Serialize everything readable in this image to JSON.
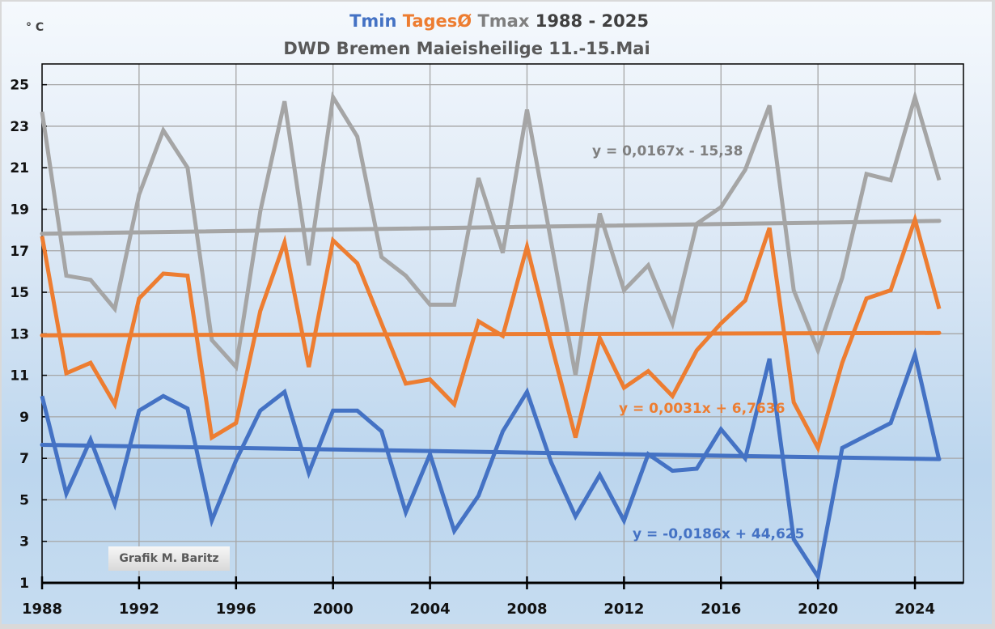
{
  "chart_data": {
    "type": "line",
    "title_parts": [
      {
        "text": "Tmin",
        "color": "#4472c4"
      },
      {
        "text": " TagesØ",
        "color": "#ed7d31"
      },
      {
        "text": " Tmax",
        "color": "#7f7f7f"
      },
      {
        "text": " 1988 - 2025",
        "color": "#404040"
      }
    ],
    "subtitle": "DWD Bremen Maieisheilige 11.-15.Mai",
    "ylabel": "° C",
    "xlabel": "",
    "x": [
      1988,
      1989,
      1990,
      1991,
      1992,
      1993,
      1994,
      1995,
      1996,
      1997,
      1998,
      1999,
      2000,
      2001,
      2002,
      2003,
      2004,
      2005,
      2006,
      2007,
      2008,
      2009,
      2010,
      2011,
      2012,
      2013,
      2014,
      2015,
      2016,
      2017,
      2018,
      2019,
      2020,
      2021,
      2022,
      2023,
      2024,
      2025
    ],
    "xlim": [
      1988,
      2026
    ],
    "ylim": [
      1,
      26
    ],
    "x_ticks": [
      1988,
      1992,
      1996,
      2000,
      2004,
      2008,
      2012,
      2016,
      2020,
      2024
    ],
    "y_ticks": [
      1,
      3,
      5,
      7,
      9,
      11,
      13,
      15,
      17,
      19,
      21,
      23,
      25
    ],
    "grid": true,
    "series": [
      {
        "name": "Tmax",
        "color": "#a5a5a5",
        "values": [
          23.7,
          15.8,
          15.6,
          14.2,
          19.7,
          22.8,
          21.0,
          12.7,
          11.4,
          18.9,
          24.2,
          16.3,
          24.4,
          22.5,
          16.7,
          15.8,
          14.4,
          14.4,
          20.5,
          16.9,
          23.8,
          17.4,
          11.0,
          18.8,
          15.1,
          16.3,
          13.5,
          18.3,
          19.1,
          20.9,
          24.0,
          15.1,
          12.2,
          15.7,
          20.7,
          20.4,
          24.4,
          20.4
        ],
        "trend": {
          "slope": 0.0167,
          "intercept": -15.38,
          "label": "y = 0,0167x - 15,38",
          "label_color": "#7f7f7f"
        }
      },
      {
        "name": "TagesØ",
        "color": "#ed7d31",
        "values": [
          17.7,
          11.1,
          11.6,
          9.6,
          14.7,
          15.9,
          15.8,
          8.0,
          8.7,
          14.1,
          17.4,
          11.4,
          17.5,
          16.4,
          13.5,
          10.6,
          10.8,
          9.6,
          13.6,
          12.9,
          17.2,
          12.5,
          8.0,
          12.8,
          10.4,
          11.2,
          10.0,
          12.2,
          13.5,
          14.6,
          18.1,
          9.7,
          7.5,
          11.6,
          14.7,
          15.1,
          18.5,
          14.2
        ],
        "trend": {
          "slope": 0.0031,
          "intercept": 6.7636,
          "label": "y = 0,0031x + 6,7636",
          "label_color": "#ed7d31"
        }
      },
      {
        "name": "Tmin",
        "color": "#4472c4",
        "values": [
          10.0,
          5.3,
          7.9,
          4.8,
          9.3,
          10.0,
          9.4,
          4.0,
          6.9,
          9.3,
          10.2,
          6.3,
          9.3,
          9.3,
          8.3,
          4.4,
          7.2,
          3.5,
          5.2,
          8.3,
          10.2,
          6.8,
          4.2,
          6.2,
          4.0,
          7.2,
          6.4,
          6.5,
          8.4,
          7.0,
          11.8,
          3.1,
          1.3,
          7.5,
          8.1,
          8.7,
          12.0,
          6.9
        ],
        "trend": {
          "slope": -0.0186,
          "intercept": 44.625,
          "label": "y = -0,0186x + 44,625",
          "label_color": "#4472c4"
        }
      }
    ],
    "credit": "Grafik M. Baritz"
  }
}
